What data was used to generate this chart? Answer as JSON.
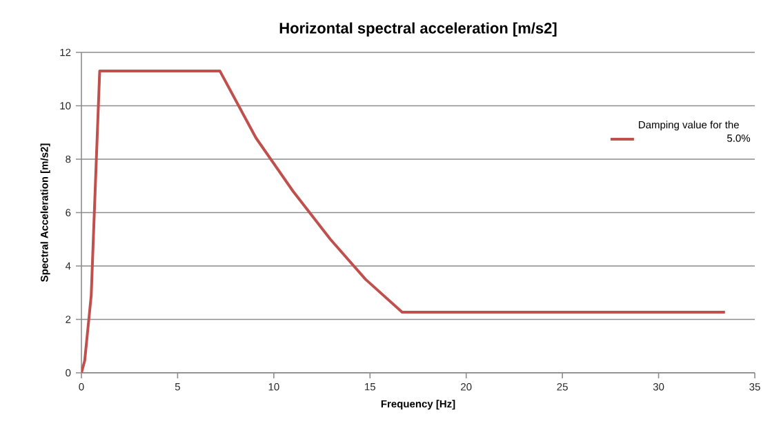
{
  "chart_data": {
    "type": "line",
    "title": "Horizontal spectral acceleration [m/s2]",
    "xlabel": "Frequency [Hz]",
    "ylabel": "Spectral Acceleration [m/s2]",
    "legend_title": "Damping value for the",
    "series": [
      {
        "name": "5.0%",
        "color": "#c0504d",
        "x": [
          0,
          0.17,
          0.51,
          0.65,
          0.95,
          7.2,
          9.07,
          11.0,
          12.94,
          14.77,
          16.67,
          33.45
        ],
        "values": [
          0,
          0.45,
          2.9,
          5.6,
          11.3,
          11.3,
          8.8,
          6.8,
          5.0,
          3.5,
          2.27,
          2.27
        ]
      }
    ],
    "xlim": [
      0,
      35
    ],
    "ylim": [
      0,
      12
    ],
    "xticks": [
      0,
      5,
      10,
      15,
      20,
      25,
      30,
      35
    ],
    "yticks": [
      0,
      2,
      4,
      6,
      8,
      10,
      12
    ],
    "grid": "y",
    "legend": "right",
    "marker": "none",
    "line_style": "solid"
  }
}
